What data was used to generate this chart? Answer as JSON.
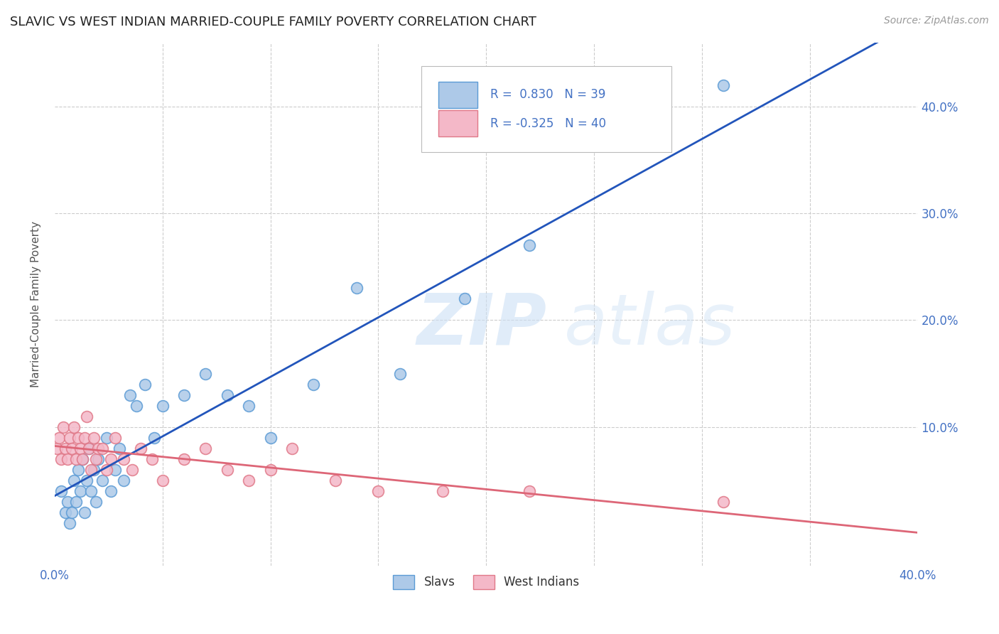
{
  "title": "SLAVIC VS WEST INDIAN MARRIED-COUPLE FAMILY POVERTY CORRELATION CHART",
  "source": "Source: ZipAtlas.com",
  "ylabel": "Married-Couple Family Poverty",
  "xlim": [
    0.0,
    0.4
  ],
  "ylim": [
    -0.03,
    0.46
  ],
  "grid_color": "#cccccc",
  "background_color": "#ffffff",
  "slavs_color": "#adc9e8",
  "slavs_edge_color": "#5b9bd5",
  "west_indians_color": "#f4b8c8",
  "west_indians_edge_color": "#e07888",
  "blue_line_color": "#2255bb",
  "pink_line_color": "#dd6677",
  "R_slavs": 0.83,
  "N_slavs": 39,
  "R_west_indians": -0.325,
  "N_west_indians": 40,
  "legend_text_color": "#4472c4",
  "slavs_x": [
    0.003,
    0.005,
    0.006,
    0.007,
    0.008,
    0.009,
    0.01,
    0.011,
    0.012,
    0.013,
    0.014,
    0.015,
    0.016,
    0.017,
    0.018,
    0.019,
    0.02,
    0.022,
    0.024,
    0.026,
    0.028,
    0.03,
    0.032,
    0.035,
    0.038,
    0.042,
    0.046,
    0.05,
    0.06,
    0.07,
    0.08,
    0.09,
    0.1,
    0.12,
    0.14,
    0.16,
    0.19,
    0.22,
    0.31
  ],
  "slavs_y": [
    0.04,
    0.02,
    0.03,
    0.01,
    0.02,
    0.05,
    0.03,
    0.06,
    0.04,
    0.07,
    0.02,
    0.05,
    0.08,
    0.04,
    0.06,
    0.03,
    0.07,
    0.05,
    0.09,
    0.04,
    0.06,
    0.08,
    0.05,
    0.13,
    0.12,
    0.14,
    0.09,
    0.12,
    0.13,
    0.15,
    0.13,
    0.12,
    0.09,
    0.14,
    0.23,
    0.15,
    0.22,
    0.27,
    0.42
  ],
  "west_indians_x": [
    0.001,
    0.002,
    0.003,
    0.004,
    0.005,
    0.006,
    0.007,
    0.008,
    0.009,
    0.01,
    0.011,
    0.012,
    0.013,
    0.014,
    0.015,
    0.016,
    0.017,
    0.018,
    0.019,
    0.02,
    0.022,
    0.024,
    0.026,
    0.028,
    0.032,
    0.036,
    0.04,
    0.045,
    0.05,
    0.06,
    0.07,
    0.08,
    0.09,
    0.1,
    0.11,
    0.13,
    0.15,
    0.18,
    0.22,
    0.31
  ],
  "west_indians_y": [
    0.08,
    0.09,
    0.07,
    0.1,
    0.08,
    0.07,
    0.09,
    0.08,
    0.1,
    0.07,
    0.09,
    0.08,
    0.07,
    0.09,
    0.11,
    0.08,
    0.06,
    0.09,
    0.07,
    0.08,
    0.08,
    0.06,
    0.07,
    0.09,
    0.07,
    0.06,
    0.08,
    0.07,
    0.05,
    0.07,
    0.08,
    0.06,
    0.05,
    0.06,
    0.08,
    0.05,
    0.04,
    0.04,
    0.04,
    0.03
  ]
}
